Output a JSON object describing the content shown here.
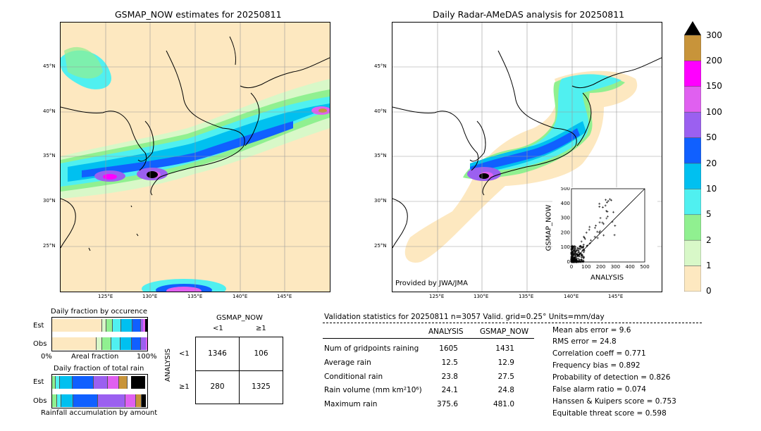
{
  "left_map": {
    "title": "GSMAP_NOW estimates for 20250811",
    "lat_labels": [
      "45°N",
      "40°N",
      "35°N",
      "30°N",
      "25°N"
    ],
    "lon_labels": [
      "125°E",
      "130°E",
      "135°E",
      "140°E",
      "145°E"
    ]
  },
  "right_map": {
    "title": "Daily Radar-AMeDAS analysis for 20250811",
    "lat_labels": [
      "45°N",
      "40°N",
      "35°N",
      "30°N",
      "25°N"
    ],
    "lon_labels": [
      "125°E",
      "130°E",
      "135°E",
      "140°E",
      "145°E"
    ],
    "credit": "Provided by JWA/JMA"
  },
  "colorbar": {
    "labels": [
      "300",
      "200",
      "150",
      "100",
      "50",
      "20",
      "10",
      "5",
      "2",
      "1",
      "0"
    ],
    "colors": [
      "#c8943a",
      "#ff00ff",
      "#e060f0",
      "#9b60f0",
      "#1060ff",
      "#00c0f0",
      "#50f0f0",
      "#90f090",
      "#d8f8c8",
      "#fde8c0"
    ]
  },
  "scatter": {
    "xlabel": "ANALYSIS",
    "ylabel": "GSMAP_NOW",
    "ticks": [
      "0",
      "100",
      "200",
      "300",
      "400",
      "500"
    ]
  },
  "occurrence": {
    "title": "Daily fraction by occurence",
    "rows": [
      "Est",
      "Obs"
    ],
    "axis_left": "0%",
    "axis_mid": "Areal fraction",
    "axis_right": "100%"
  },
  "total_rain": {
    "title": "Daily fraction of total rain",
    "rows": [
      "Est",
      "Obs"
    ],
    "footer": "Rainfall accumulation by amount"
  },
  "contingency": {
    "title": "GSMAP_NOW",
    "col_lt": "<1",
    "col_ge": "≥1",
    "row_axis": "ANALYSIS",
    "row_lt": "<1",
    "row_ge": "≥1",
    "a": "1346",
    "b": "106",
    "c": "280",
    "d": "1325"
  },
  "validation": {
    "header": "Validation statistics for 20250811  n=3057 Valid. grid=0.25° Units=mm/day",
    "col1": "ANALYSIS",
    "col2": "GSMAP_NOW",
    "rows": [
      {
        "label": "Num of gridpoints raining",
        "a": "1605",
        "g": "1431"
      },
      {
        "label": "Average rain",
        "a": "12.5",
        "g": "12.9"
      },
      {
        "label": "Conditional rain",
        "a": "23.8",
        "g": "27.5"
      },
      {
        "label": "Rain volume (mm km²10⁶)",
        "a": "24.1",
        "g": "24.8"
      },
      {
        "label": "Maximum rain",
        "a": "375.6",
        "g": "481.0"
      }
    ],
    "scores": [
      "Mean abs error =    9.6",
      "RMS error =   24.8",
      "Correlation coeff =  0.771",
      "Frequency bias =  0.892",
      "Probability of detection =  0.826",
      "False alarm ratio =  0.074",
      "Hanssen & Kuipers score =  0.753",
      "Equitable threat score =  0.598"
    ]
  }
}
